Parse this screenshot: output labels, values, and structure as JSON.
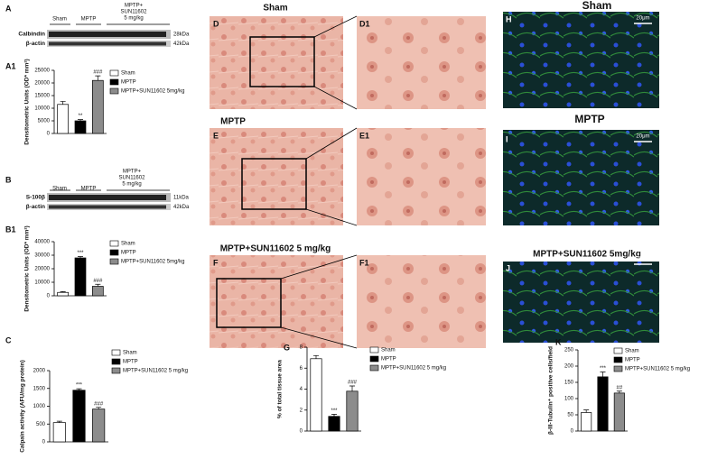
{
  "chart_data": [
    {
      "type": "bar",
      "y_label": "Densitometric Units (OD* mm²)",
      "ylim": [
        0,
        25000
      ],
      "yticks": [
        0,
        5000,
        10000,
        15000,
        20000,
        25000
      ],
      "series": [
        {
          "name": "Sham",
          "color": "#ffffff",
          "values": [
            11500
          ],
          "errors": [
            1200
          ]
        },
        {
          "name": "MPTP",
          "color": "#000000",
          "values": [
            5000
          ],
          "errors": [
            500
          ],
          "significance": "**"
        },
        {
          "name": "MPTP+SUN11602 5mg/kg",
          "color": "#8c8c8c",
          "values": [
            21000
          ],
          "errors": [
            1800
          ],
          "significance": "###"
        }
      ]
    },
    {
      "type": "bar",
      "y_label": "Densitometric Units (OD* mm²)",
      "ylim": [
        0,
        40000
      ],
      "yticks": [
        0,
        10000,
        20000,
        30000,
        40000
      ],
      "series": [
        {
          "name": "Sham",
          "color": "#ffffff",
          "values": [
            2500
          ],
          "errors": [
            600
          ]
        },
        {
          "name": "MPTP",
          "color": "#000000",
          "values": [
            28000
          ],
          "errors": [
            1000
          ],
          "significance": "***"
        },
        {
          "name": "MPTP+SUN11602 5mg/kg",
          "color": "#8c8c8c",
          "values": [
            7000
          ],
          "errors": [
            1500
          ],
          "significance": "###"
        }
      ]
    },
    {
      "type": "bar",
      "y_label": "Calpain activity (AFU/mg protein)",
      "ylim": [
        0,
        2000
      ],
      "yticks": [
        0,
        500,
        1000,
        1500,
        2000
      ],
      "series": [
        {
          "name": "Sham",
          "color": "#ffffff",
          "values": [
            540
          ],
          "errors": [
            40
          ]
        },
        {
          "name": "MPTP",
          "color": "#000000",
          "values": [
            1450
          ],
          "errors": [
            40
          ],
          "significance": "***"
        },
        {
          "name": "MPTP+SUN11602 5 mg/kg",
          "color": "#8c8c8c",
          "values": [
            920
          ],
          "errors": [
            50
          ],
          "significance": "###"
        }
      ]
    },
    {
      "type": "bar",
      "y_label": "% of total tissue area",
      "ylim": [
        0,
        8
      ],
      "yticks": [
        0,
        2,
        4,
        6,
        8
      ],
      "series": [
        {
          "name": "Sham",
          "color": "#ffffff",
          "values": [
            6.9
          ],
          "errors": [
            0.3
          ]
        },
        {
          "name": "MPTP",
          "color": "#000000",
          "values": [
            1.4
          ],
          "errors": [
            0.2
          ],
          "significance": "***"
        },
        {
          "name": "MPTP+SUN11602 5 mg/kg",
          "color": "#8c8c8c",
          "values": [
            3.8
          ],
          "errors": [
            0.5
          ],
          "significance": "###"
        }
      ]
    },
    {
      "type": "bar",
      "y_label": "β-III-Tubulin⁺ positive cells/field",
      "ylim": [
        0,
        250
      ],
      "yticks": [
        0,
        50,
        100,
        150,
        200,
        250
      ],
      "series": [
        {
          "name": "Sham",
          "color": "#ffffff",
          "values": [
            57
          ],
          "errors": [
            8
          ]
        },
        {
          "name": "MPTP",
          "color": "#000000",
          "values": [
            167
          ],
          "errors": [
            15
          ],
          "significance": "***"
        },
        {
          "name": "MPTP+SUN11602 5 mg/kg",
          "color": "#8c8c8c",
          "values": [
            117
          ],
          "errors": [
            6
          ],
          "significance": "##"
        }
      ]
    }
  ],
  "panel_labels": [
    "A",
    "A1",
    "B",
    "B1",
    "C",
    "D",
    "D1",
    "E",
    "E1",
    "F",
    "F1",
    "G",
    "H",
    "I",
    "J",
    "K"
  ],
  "micrograph_titles": [
    "Sham",
    "MPTP",
    "MPTP+SUN11602 5 mg/kg"
  ],
  "fluorescence_titles": [
    "Sham",
    "MPTP",
    "MPTP+SUN11602 5mg/kg"
  ],
  "scale_bars": [
    "20μm",
    "20μm",
    "20μm"
  ],
  "blots": [
    {
      "headers": [
        "Sham",
        "MPTP",
        "MPTP+",
        "SUN11602",
        "5 mg/kg"
      ],
      "rows": [
        {
          "name": "Calbindin",
          "size": "28kDa"
        },
        {
          "name": "β-actin",
          "size": "42kDa"
        }
      ]
    },
    {
      "headers": [
        "Sham",
        "MPTP",
        "MPTP+",
        "SUN11602",
        "5 mg/kg"
      ],
      "rows": [
        {
          "name": "S-100β",
          "size": "11kDa"
        },
        {
          "name": "β-actin",
          "size": "42kDa"
        }
      ]
    }
  ]
}
